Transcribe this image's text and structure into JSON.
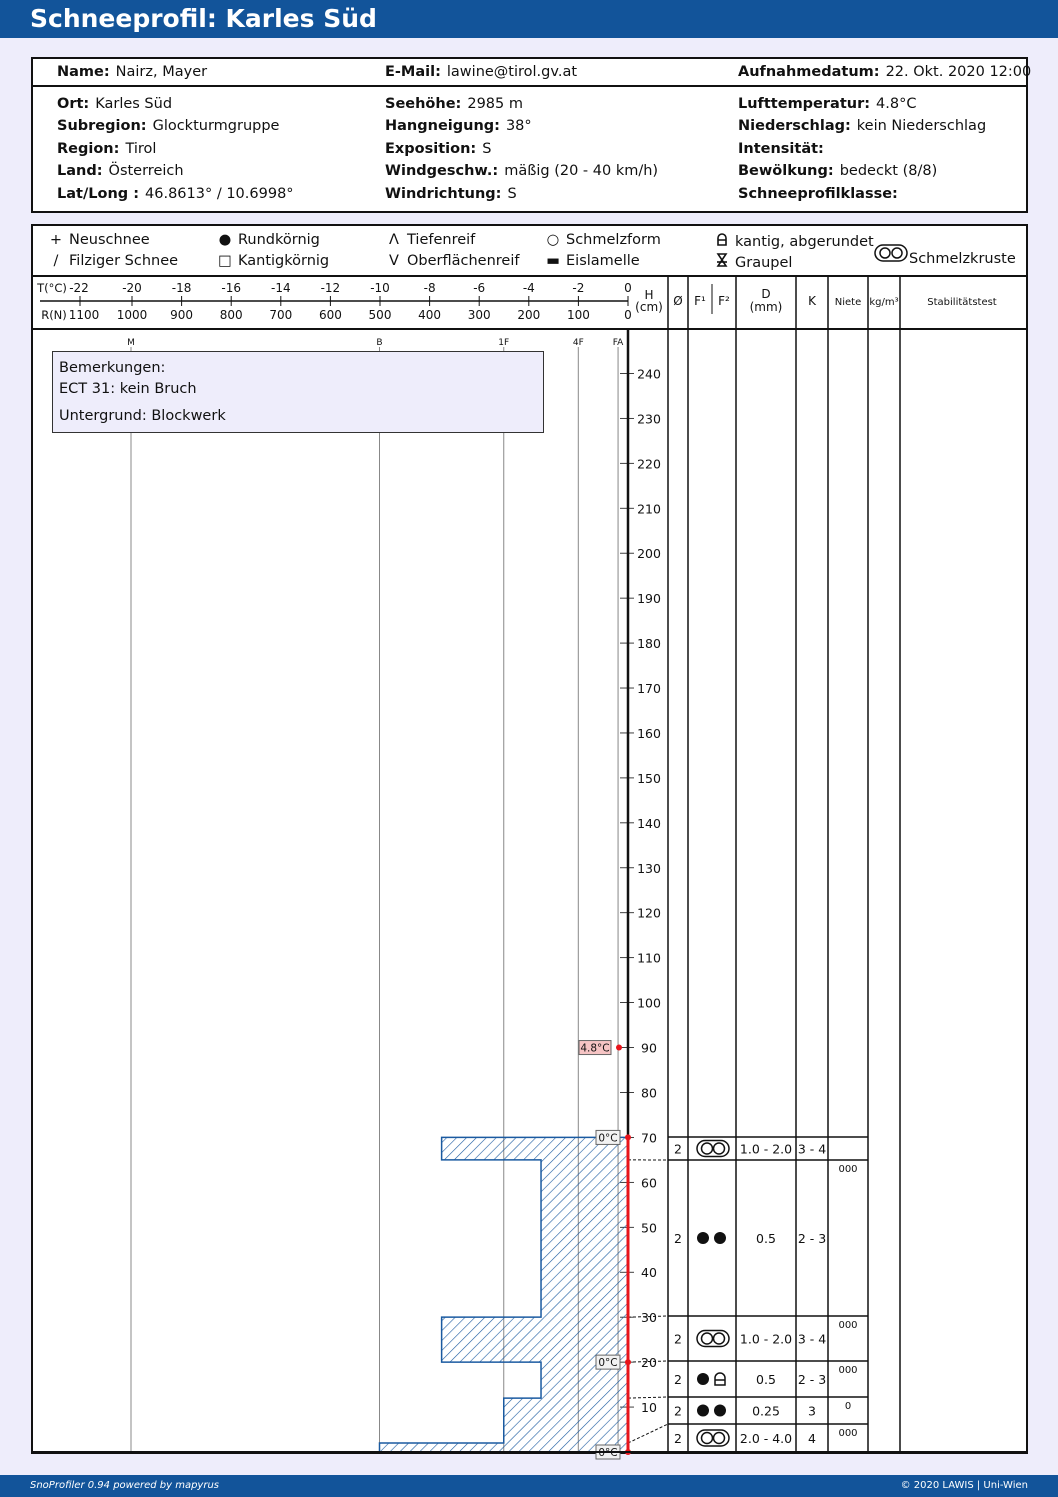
{
  "title": "Schneeprofil: Karles Süd",
  "header": {
    "name": {
      "label": "Name:",
      "value": "Nairz, Mayer"
    },
    "email": {
      "label": "E-Mail:",
      "value": "lawine@tirol.gv.at"
    },
    "date": {
      "label": "Aufnahmedatum:",
      "value": "22. Okt. 2020 12:00"
    }
  },
  "info": [
    [
      {
        "label": "Ort:",
        "value": "Karles Süd"
      },
      {
        "label": "Subregion:",
        "value": "Glockturmgruppe"
      },
      {
        "label": "Region:",
        "value": "Tirol"
      },
      {
        "label": "Land:",
        "value": "Österreich"
      },
      {
        "label": "Lat/Long :",
        "value": "46.8613° / 10.6998°"
      }
    ],
    [
      {
        "label": "Seehöhe:",
        "value": "2985 m"
      },
      {
        "label": "Hangneigung:",
        "value": "38°"
      },
      {
        "label": "Exposition:",
        "value": "S"
      },
      {
        "label": "Windgeschw.:",
        "value": "mäßig (20 - 40 km/h)"
      },
      {
        "label": "Windrichtung:",
        "value": "S"
      }
    ],
    [
      {
        "label": "Lufttemperatur:",
        "value": "4.8°C"
      },
      {
        "label": "Niederschlag:",
        "value": "kein Niederschlag"
      },
      {
        "label": "Intensität:",
        "value": ""
      },
      {
        "label": "Bewölkung:",
        "value": "bedeckt (8/8)"
      },
      {
        "label": "Schneeprofilklasse:",
        "value": ""
      }
    ]
  ],
  "legend": [
    {
      "icon": "+",
      "label": "Neuschnee"
    },
    {
      "icon": "/",
      "label": "Filziger Schnee"
    },
    {
      "icon": "●",
      "label": "Rundkörnig"
    },
    {
      "icon": "□",
      "label": "Kantigkörnig"
    },
    {
      "icon": "Λ",
      "label": "Tiefenreif"
    },
    {
      "icon": "V",
      "label": "Oberflächenreif"
    },
    {
      "icon": "○",
      "label": "Schmelzform"
    },
    {
      "icon": "▬",
      "label": "Eislamelle"
    },
    {
      "icon": "kantig-abgerundet",
      "label": "kantig, abgerundet"
    },
    {
      "icon": "graupel",
      "label": "Graupel"
    },
    {
      "icon": "schmelzkruste",
      "label": "Schmelzkruste"
    }
  ],
  "scale": {
    "t_label": "T(°C)",
    "t_ticks": [
      "-22",
      "-20",
      "-18",
      "-16",
      "-14",
      "-12",
      "-10",
      "-8",
      "-6",
      "-4",
      "-2",
      "0"
    ],
    "r_label": "R(N)",
    "r_ticks": [
      "1100",
      "1000",
      "900",
      "800",
      "700",
      "600",
      "500",
      "400",
      "300",
      "200",
      "100",
      "0"
    ],
    "h_label": "H",
    "h_unit": "(cm)",
    "hardness_marks": [
      {
        "code": "M",
        "n": 1000
      },
      {
        "code": "B",
        "n": 500
      },
      {
        "code": "1F",
        "n": 250
      },
      {
        "code": "4F",
        "n": 100
      },
      {
        "code": "FA",
        "n": 20
      }
    ],
    "h_ticks": [
      240,
      230,
      220,
      210,
      200,
      190,
      180,
      170,
      160,
      150,
      140,
      130,
      120,
      110,
      100,
      90,
      80,
      70,
      60,
      50,
      40,
      30,
      20,
      10
    ]
  },
  "columns": {
    "diameter": "Ø",
    "f1": "F¹",
    "f2": "F²",
    "d": "D",
    "d_unit": "(mm)",
    "k": "K",
    "niete": "Niete",
    "density": "kg/m³",
    "stability": "Stabilitätstest"
  },
  "remarks": {
    "title": "Bemerkungen:",
    "lines": [
      "ECT 31: kein Bruch",
      "Untergrund: Blockwerk"
    ]
  },
  "colors": {
    "brand": "#12549a",
    "hatch": "#1a5aa0",
    "temperature": "#e8141b"
  },
  "chart_data": {
    "type": "table",
    "layers": [
      {
        "top": 70,
        "bottom": 65,
        "hardness_n": 375,
        "col": "2",
        "grains": [
          "schmelzkruste"
        ],
        "d": "1.0 - 2.0",
        "k": "3 - 4",
        "niete": ""
      },
      {
        "top": 65,
        "bottom": 30,
        "hardness_n": 175,
        "col": "2",
        "grains": [
          "rundkoernig",
          "rundkoernig"
        ],
        "d": "0.5",
        "k": "2 - 3",
        "niete": "000"
      },
      {
        "top": 30,
        "bottom": 20,
        "hardness_n": 375,
        "col": "2",
        "grains": [
          "schmelzkruste"
        ],
        "d": "1.0 - 2.0",
        "k": "3 - 4",
        "niete": "000"
      },
      {
        "top": 20,
        "bottom": 12,
        "hardness_n": 175,
        "col": "2",
        "grains": [
          "rundkoernig",
          "kantig-abgerundet"
        ],
        "d": "0.5",
        "k": "2 - 3",
        "niete": "000"
      },
      {
        "top": 12,
        "bottom": 2,
        "hardness_n": 250,
        "col": "2",
        "grains": [
          "rundkoernig",
          "rundkoernig"
        ],
        "d": "0.25",
        "k": "3",
        "niete": "0"
      },
      {
        "top": 2,
        "bottom": 0,
        "hardness_n": 500,
        "col": "2",
        "grains": [
          "schmelzkruste"
        ],
        "d": "2.0 - 4.0",
        "k": "4",
        "niete": "000"
      }
    ],
    "temperature": [
      {
        "h": 90,
        "t": 4.8,
        "label": "4.8°C"
      },
      {
        "h": 70,
        "t": 0,
        "label": "0°C"
      },
      {
        "h": 20,
        "t": 0,
        "label": "0°C"
      },
      {
        "h": 0,
        "t": 0,
        "label": "0°C"
      }
    ]
  },
  "footer": {
    "left": "SnoProfiler 0.94 powered by mapyrus",
    "right": "© 2020 LAWIS | Uni-Wien"
  }
}
